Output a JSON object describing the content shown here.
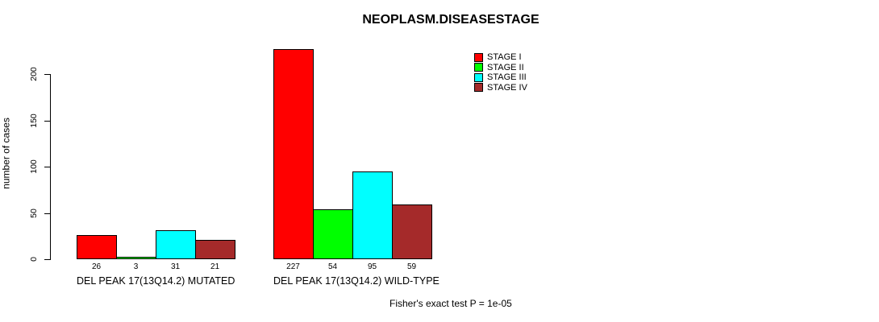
{
  "page": {
    "background_color": "#ffffff"
  },
  "chart_data": {
    "type": "bar",
    "title": "NEOPLASM.DISEASESTAGE",
    "xlabel": "",
    "ylabel": "number of cases",
    "categories": [
      "DEL PEAK 17(13Q14.2) MUTATED",
      "DEL PEAK 17(13Q14.2) WILD-TYPE"
    ],
    "series": [
      {
        "name": "STAGE I",
        "color": "#ff0000",
        "values": [
          26,
          227
        ]
      },
      {
        "name": "STAGE II",
        "color": "#00ff00",
        "values": [
          3,
          54
        ]
      },
      {
        "name": "STAGE III",
        "color": "#00ffff",
        "values": [
          31,
          95
        ]
      },
      {
        "name": "STAGE IV",
        "color": "#a52a2a",
        "values": [
          21,
          59
        ]
      }
    ],
    "y_ticks": [
      0,
      50,
      100,
      150,
      200
    ],
    "ylim": [
      0,
      230
    ],
    "grid": false,
    "legend_position": "top-right",
    "bar_border_color": "#000000",
    "annotation": "Fisher's exact test P = 1e-05"
  }
}
